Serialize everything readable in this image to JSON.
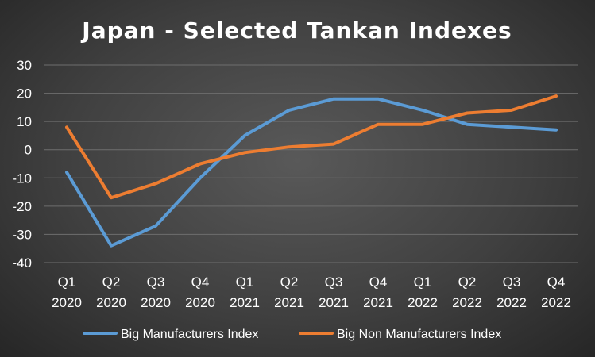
{
  "chart_data": {
    "type": "line",
    "title": "Japan - Selected Tankan Indexes",
    "xlabel": "",
    "ylabel": "",
    "categories": [
      [
        "Q1",
        "2020"
      ],
      [
        "Q2",
        "2020"
      ],
      [
        "Q3",
        "2020"
      ],
      [
        "Q4",
        "2020"
      ],
      [
        "Q1",
        "2021"
      ],
      [
        "Q2",
        "2021"
      ],
      [
        "Q3",
        "2021"
      ],
      [
        "Q4",
        "2021"
      ],
      [
        "Q1",
        "2022"
      ],
      [
        "Q2",
        "2022"
      ],
      [
        "Q3",
        "2022"
      ],
      [
        "Q4",
        "2022"
      ]
    ],
    "ylim": [
      -40,
      30
    ],
    "yticks": [
      30,
      20,
      10,
      0,
      -10,
      -20,
      -30,
      -40
    ],
    "grid": true,
    "legend_position": "bottom",
    "series": [
      {
        "name": "Big Manufacturers Index",
        "color": "#5B9BD5",
        "values": [
          -8,
          -34,
          -27,
          -10,
          5,
          14,
          18,
          18,
          14,
          9,
          8,
          7
        ]
      },
      {
        "name": "Big Non Manufacturers Index",
        "color": "#ED7D31",
        "values": [
          8,
          -17,
          -12,
          -5,
          -1,
          1,
          2,
          9,
          9,
          13,
          14,
          19
        ]
      }
    ]
  }
}
